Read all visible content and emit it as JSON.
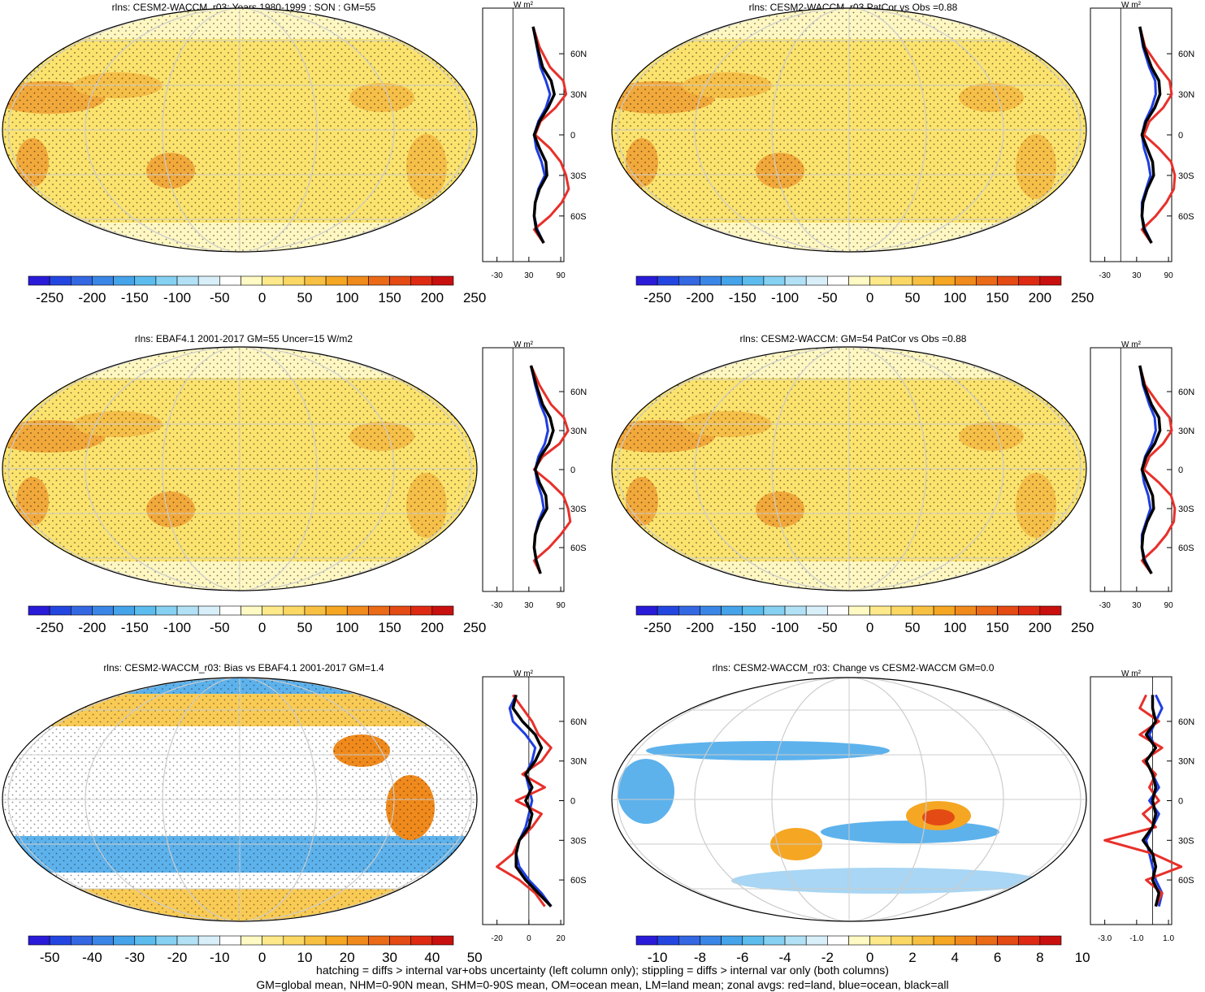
{
  "colors": {
    "land": "#e8302a",
    "ocean": "#1f3ee0",
    "all": "#000000",
    "map_fill": "#fbe36e",
    "map_high": "#f2a93b",
    "map_low": "#fff7c2",
    "bias_pos": "#f9cb55",
    "bias_neg": "#5db2ec"
  },
  "chart_data": [
    {
      "type": "heatmap",
      "id": "p1",
      "title": "rlns: CESM2-WACCM_r03: Years 1980-1999 : SON : GM=55",
      "colorbar": {
        "ticks": [
          "-250",
          "-200",
          "-150",
          "-100",
          "-50",
          "0",
          "50",
          "100",
          "150",
          "200",
          "250"
        ]
      },
      "zonal": {
        "units": "W m²",
        "xticks": [
          "-30",
          "30",
          "90"
        ],
        "yticks": [
          "60N",
          "30N",
          "0",
          "30S",
          "60S"
        ],
        "series": [
          {
            "color_key": "ocean",
            "lat": [
              80,
              65,
              50,
              40,
              30,
              20,
              10,
              0,
              -10,
              -20,
              -30,
              -40,
              -50,
              -60,
              -70,
              -80
            ],
            "val": [
              38,
              45,
              52,
              62,
              70,
              62,
              48,
              40,
              44,
              54,
              60,
              48,
              42,
              40,
              46,
              58
            ]
          },
          {
            "color_key": "land",
            "lat": [
              80,
              65,
              50,
              40,
              30,
              20,
              10,
              0,
              -10,
              -20,
              -30,
              -40,
              -50,
              -60,
              -70,
              -80
            ],
            "val": [
              38,
              50,
              70,
              95,
              100,
              80,
              52,
              42,
              70,
              90,
              100,
              105,
              92,
              70,
              40,
              58
            ]
          },
          {
            "color_key": "all",
            "lat": [
              80,
              65,
              50,
              40,
              30,
              20,
              10,
              0,
              -10,
              -20,
              -30,
              -40,
              -50,
              -60,
              -70,
              -80
            ],
            "val": [
              38,
              46,
              56,
              72,
              78,
              66,
              50,
              40,
              50,
              62,
              64,
              50,
              42,
              40,
              44,
              58
            ]
          }
        ]
      }
    },
    {
      "type": "heatmap",
      "id": "p2",
      "title": "rlns: CESM2-WACCM_r03 PatCor vs Obs =0.88",
      "colorbar": {
        "ticks": [
          "-250",
          "-200",
          "-150",
          "-100",
          "-50",
          "0",
          "50",
          "100",
          "150",
          "200",
          "250"
        ]
      },
      "zonal": {
        "units": "W m²",
        "xticks": [
          "-30",
          "30",
          "90"
        ],
        "yticks": [
          "60N",
          "30N",
          "0",
          "30S",
          "60S"
        ],
        "series": [
          {
            "color_key": "ocean",
            "lat": [
              80,
              65,
              50,
              40,
              30,
              20,
              10,
              0,
              -10,
              -20,
              -30,
              -40,
              -50,
              -60,
              -70,
              -80
            ],
            "val": [
              36,
              42,
              54,
              65,
              66,
              58,
              46,
              40,
              44,
              52,
              56,
              48,
              40,
              40,
              46,
              58
            ]
          },
          {
            "color_key": "land",
            "lat": [
              80,
              65,
              50,
              40,
              30,
              20,
              10,
              0,
              -10,
              -20,
              -30,
              -40,
              -50,
              -60,
              -70,
              -80
            ],
            "val": [
              36,
              46,
              72,
              92,
              96,
              80,
              54,
              44,
              72,
              95,
              102,
              100,
              86,
              66,
              40,
              58
            ]
          },
          {
            "color_key": "all",
            "lat": [
              80,
              65,
              50,
              40,
              30,
              20,
              10,
              0,
              -10,
              -20,
              -30,
              -40,
              -50,
              -60,
              -70,
              -80
            ],
            "val": [
              36,
              44,
              58,
              72,
              74,
              64,
              48,
              40,
              50,
              60,
              62,
              50,
              42,
              40,
              44,
              58
            ]
          }
        ]
      }
    },
    {
      "type": "heatmap",
      "id": "p3",
      "title": "rlns: EBAF4.1 2001-2017 GM=55 Uncer=15 W/m2",
      "colorbar": {
        "ticks": [
          "-250",
          "-200",
          "-150",
          "-100",
          "-50",
          "0",
          "50",
          "100",
          "150",
          "200",
          "250"
        ]
      },
      "zonal": {
        "units": "W m²",
        "xticks": [
          "-30",
          "30",
          "90"
        ],
        "yticks": [
          "60N",
          "30N",
          "0",
          "30S",
          "60S"
        ],
        "series": [
          {
            "color_key": "ocean",
            "lat": [
              80,
              65,
              50,
              40,
              30,
              20,
              10,
              0,
              -10,
              -20,
              -30,
              -40,
              -50,
              -60,
              -70,
              -80
            ],
            "val": [
              34,
              42,
              52,
              62,
              66,
              60,
              48,
              42,
              46,
              54,
              58,
              48,
              42,
              40,
              44,
              52
            ]
          },
          {
            "color_key": "land",
            "lat": [
              80,
              65,
              50,
              40,
              30,
              20,
              10,
              0,
              -10,
              -20,
              -30,
              -40,
              -50,
              -60,
              -70,
              -80
            ],
            "val": [
              34,
              50,
              72,
              96,
              104,
              88,
              56,
              40,
              70,
              95,
              104,
              108,
              90,
              68,
              40,
              52
            ]
          },
          {
            "color_key": "all",
            "lat": [
              80,
              65,
              50,
              40,
              30,
              20,
              10,
              0,
              -10,
              -20,
              -30,
              -40,
              -50,
              -60,
              -70,
              -80
            ],
            "val": [
              34,
              44,
              56,
              70,
              76,
              68,
              52,
              42,
              50,
              62,
              64,
              50,
              42,
              40,
              44,
              52
            ]
          }
        ]
      }
    },
    {
      "type": "heatmap",
      "id": "p4",
      "title": "rlns: CESM2-WACCM: GM=54 PatCor vs Obs =0.88",
      "colorbar": {
        "ticks": [
          "-250",
          "-200",
          "-150",
          "-100",
          "-50",
          "0",
          "50",
          "100",
          "150",
          "200",
          "250"
        ]
      },
      "zonal": {
        "units": "W m²",
        "xticks": [
          "-30",
          "30",
          "90"
        ],
        "yticks": [
          "60N",
          "30N",
          "0",
          "30S",
          "60S"
        ],
        "series": [
          {
            "color_key": "ocean",
            "lat": [
              80,
              65,
              50,
              40,
              30,
              20,
              10,
              0,
              -10,
              -20,
              -30,
              -40,
              -50,
              -60,
              -70,
              -80
            ],
            "val": [
              36,
              42,
              54,
              64,
              66,
              58,
              46,
              40,
              44,
              52,
              56,
              48,
              40,
              40,
              46,
              58
            ]
          },
          {
            "color_key": "land",
            "lat": [
              80,
              65,
              50,
              40,
              30,
              20,
              10,
              0,
              -10,
              -20,
              -30,
              -40,
              -50,
              -60,
              -70,
              -80
            ],
            "val": [
              36,
              46,
              72,
              92,
              96,
              80,
              54,
              44,
              72,
              95,
              102,
              100,
              86,
              66,
              40,
              58
            ]
          },
          {
            "color_key": "all",
            "lat": [
              80,
              65,
              50,
              40,
              30,
              20,
              10,
              0,
              -10,
              -20,
              -30,
              -40,
              -50,
              -60,
              -70,
              -80
            ],
            "val": [
              36,
              44,
              58,
              72,
              74,
              64,
              48,
              40,
              50,
              60,
              62,
              50,
              42,
              40,
              44,
              58
            ]
          }
        ]
      }
    },
    {
      "type": "heatmap",
      "id": "p5",
      "title": "rlns: CESM2-WACCM_r03: Bias vs EBAF4.1 2001-2017  GM=1.4",
      "colorbar": {
        "ticks": [
          "-50",
          "-40",
          "-30",
          "-20",
          "-10",
          "0",
          "10",
          "20",
          "30",
          "40",
          "50"
        ]
      },
      "zonal": {
        "units": "W m²",
        "xticks": [
          "-20",
          "0",
          "20"
        ],
        "yticks": [
          "60N",
          "30N",
          "0",
          "30S",
          "60S"
        ],
        "series": [
          {
            "color_key": "ocean",
            "lat": [
              80,
              70,
              60,
              50,
              40,
              30,
              20,
              10,
              0,
              -10,
              -20,
              -30,
              -40,
              -50,
              -60,
              -70,
              -80
            ],
            "val": [
              -8,
              -12,
              -10,
              -2,
              4,
              2,
              -2,
              0,
              2,
              0,
              -2,
              -6,
              -8,
              -6,
              0,
              8,
              14
            ]
          },
          {
            "color_key": "land",
            "lat": [
              80,
              70,
              60,
              50,
              40,
              30,
              20,
              10,
              0,
              -10,
              -20,
              -30,
              -40,
              -50,
              -60,
              -70,
              -80
            ],
            "val": [
              -10,
              -4,
              2,
              6,
              14,
              8,
              -4,
              10,
              -8,
              8,
              2,
              -6,
              -10,
              -20,
              -6,
              4,
              10
            ]
          },
          {
            "color_key": "all",
            "lat": [
              80,
              70,
              60,
              50,
              40,
              30,
              20,
              10,
              0,
              -10,
              -20,
              -30,
              -40,
              -50,
              -60,
              -70,
              -80
            ],
            "val": [
              -8,
              -10,
              -4,
              4,
              8,
              4,
              -2,
              2,
              -2,
              2,
              0,
              -6,
              -8,
              -8,
              -2,
              6,
              14
            ]
          }
        ]
      }
    },
    {
      "type": "heatmap",
      "id": "p6",
      "title": "rlns: CESM2-WACCM_r03: Change vs CESM2-WACCM GM=0.0",
      "colorbar": {
        "ticks": [
          "-10",
          "-8",
          "-6",
          "-4",
          "-2",
          "0",
          "2",
          "4",
          "6",
          "8",
          "10"
        ]
      },
      "zonal": {
        "units": "W m²",
        "xticks": [
          "-3.0",
          "-1.0",
          "1.0"
        ],
        "yticks": [
          "60N",
          "30N",
          "0",
          "30S",
          "60S"
        ],
        "series": [
          {
            "color_key": "ocean",
            "lat": [
              80,
              70,
              60,
              50,
              40,
              30,
              20,
              10,
              0,
              -10,
              -20,
              -30,
              -40,
              -50,
              -60,
              -70,
              -80
            ],
            "val": [
              0.2,
              0.6,
              0.2,
              -0.2,
              0.2,
              -0.4,
              0.0,
              0.4,
              -0.2,
              0.4,
              0.0,
              -0.4,
              -0.2,
              0.0,
              0.2,
              0.6,
              0.4
            ]
          },
          {
            "color_key": "land",
            "lat": [
              80,
              70,
              60,
              50,
              40,
              30,
              20,
              10,
              0,
              -10,
              -20,
              -30,
              -40,
              -50,
              -60,
              -70,
              -80
            ],
            "val": [
              -0.4,
              -0.8,
              0.4,
              -0.8,
              0.6,
              -0.6,
              0.2,
              -0.2,
              0.4,
              -0.6,
              0.2,
              -3.0,
              0.0,
              1.8,
              -0.4,
              0.6,
              0.2
            ]
          },
          {
            "color_key": "all",
            "lat": [
              80,
              70,
              60,
              50,
              40,
              30,
              20,
              10,
              0,
              -10,
              -20,
              -30,
              -40,
              -50,
              -60,
              -70,
              -80
            ],
            "val": [
              0.0,
              0.0,
              0.2,
              -0.4,
              0.2,
              -0.4,
              0.0,
              0.2,
              0.0,
              0.2,
              0.0,
              -0.6,
              0.0,
              0.2,
              0.0,
              0.4,
              0.2
            ]
          }
        ]
      }
    }
  ],
  "footer": {
    "line1": "hatching = diffs > internal var+obs uncertainty (left column only); stippling = diffs > internal var only (both columns)",
    "line2": "GM=global mean, NHM=0-90N mean, SHM=0-90S mean, OM=ocean mean, LM=land mean; zonal avgs: red=land, blue=ocean, black=all"
  }
}
